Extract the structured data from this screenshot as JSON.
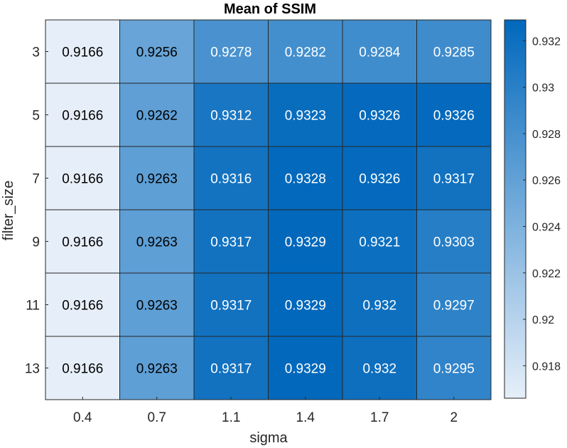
{
  "chart_data": {
    "type": "heatmap",
    "title": "Mean of SSIM",
    "xlabel": "sigma",
    "ylabel": "filter_size",
    "x_categories": [
      "0.4",
      "0.7",
      "1.1",
      "1.4",
      "1.7",
      "2"
    ],
    "y_categories": [
      "3",
      "5",
      "7",
      "9",
      "11",
      "13"
    ],
    "values": [
      [
        0.9166,
        0.9256,
        0.9278,
        0.9282,
        0.9284,
        0.9285
      ],
      [
        0.9166,
        0.9262,
        0.9312,
        0.9323,
        0.9326,
        0.9326
      ],
      [
        0.9166,
        0.9263,
        0.9316,
        0.9328,
        0.9326,
        0.9317
      ],
      [
        0.9166,
        0.9263,
        0.9317,
        0.9329,
        0.9321,
        0.9303
      ],
      [
        0.9166,
        0.9263,
        0.9317,
        0.9329,
        0.932,
        0.9297
      ],
      [
        0.9166,
        0.9263,
        0.9317,
        0.9329,
        0.932,
        0.9295
      ]
    ],
    "value_labels": [
      [
        "0.9166",
        "0.9256",
        "0.9278",
        "0.9282",
        "0.9284",
        "0.9285"
      ],
      [
        "0.9166",
        "0.9262",
        "0.9312",
        "0.9323",
        "0.9326",
        "0.9326"
      ],
      [
        "0.9166",
        "0.9263",
        "0.9316",
        "0.9328",
        "0.9326",
        "0.9317"
      ],
      [
        "0.9166",
        "0.9263",
        "0.9317",
        "0.9329",
        "0.9321",
        "0.9303"
      ],
      [
        "0.9166",
        "0.9263",
        "0.9317",
        "0.9329",
        "0.932",
        "0.9297"
      ],
      [
        "0.9166",
        "0.9263",
        "0.9317",
        "0.9329",
        "0.932",
        "0.9295"
      ]
    ],
    "colorbar": {
      "range": [
        0.9166,
        0.9329
      ],
      "ticks": [
        0.918,
        0.92,
        0.922,
        0.924,
        0.926,
        0.928,
        0.93,
        0.932
      ],
      "tick_labels": [
        "0.918",
        "0.92",
        "0.922",
        "0.924",
        "0.926",
        "0.928",
        "0.93",
        "0.932"
      ]
    },
    "colors": {
      "low": "#e6eff9",
      "high": "#0168bc",
      "grid": "#262626",
      "text_dark": "#000000",
      "text_light": "#ffffff"
    },
    "grid": true
  }
}
